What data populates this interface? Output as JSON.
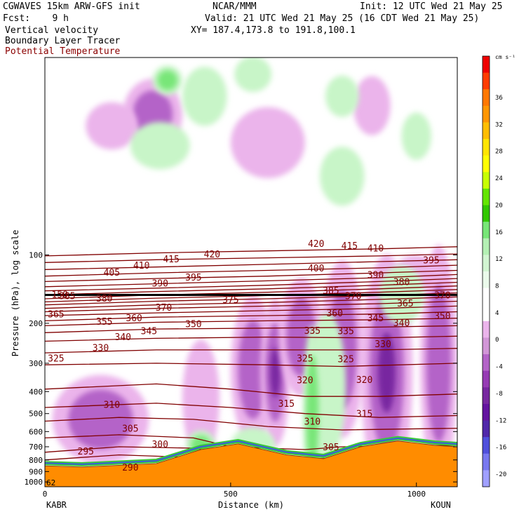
{
  "header": {
    "title": "CGWAVES 15km ARW-GFS init",
    "center": "NCAR/MMM",
    "init": "Init: 12 UTC Wed 21 May 25",
    "fcst": "Fcst:    9 h",
    "valid": "Valid: 21 UTC Wed 21 May 25 (16 CDT Wed 21 May 25)",
    "field1": "Vertical velocity",
    "field2": "Boundary Layer Tracer",
    "field3": "Potential Temperature",
    "xy": "XY= 187.4,173.8 to 191.8,100.1"
  },
  "colors": {
    "theta": "#800000",
    "terrain": "#ff8c00",
    "tropopause": "#000000",
    "up_light": "#c8f5c8",
    "up_mid": "#78e678",
    "down_light": "#ebb4eb",
    "down_mid": "#b464c8",
    "down_dark": "#7828a0"
  },
  "chart_data": {
    "type": "heatmap",
    "xlabel": "Distance (km)",
    "ylabel": "Pressure (hPa), log scale",
    "x_ticks": [
      0,
      500,
      1000
    ],
    "x_range": [
      0,
      1110
    ],
    "y_ticks": [
      100,
      200,
      300,
      400,
      500,
      600,
      700,
      800,
      900,
      1000
    ],
    "y_range": [
      1050,
      13.5
    ],
    "y_scale": "log",
    "endpoint_labels": [
      "KABR",
      "KOUN"
    ],
    "corner_label": "62",
    "colorbar": {
      "unit": "cm s⁻¹",
      "ticks": [
        36,
        32,
        28,
        24,
        20,
        16,
        12,
        8,
        4,
        0,
        -4,
        -8,
        -12,
        -16,
        -20
      ],
      "colors": [
        "#f00000",
        "#ff3c00",
        "#ff7800",
        "#ff9600",
        "#ffbe00",
        "#ffe600",
        "#ffff00",
        "#c8ff00",
        "#64e600",
        "#32c800",
        "#78e678",
        "#b4f0b4",
        "#d2f5d2",
        "#ebfaeb",
        "#ffffff",
        "#ffffff",
        "#ebb4eb",
        "#d296d7",
        "#b464c8",
        "#963cb4",
        "#7828a0",
        "#6414a0",
        "#5028aa",
        "#5050dc",
        "#7878f0",
        "#a0a0ff"
      ]
    },
    "theta_contours": [
      {
        "level": 290,
        "x": [
          0,
          250,
          500,
          750,
          1000,
          1110
        ],
        "p": [
          875,
          860,
          850,
          850,
          860,
          865
        ]
      },
      {
        "level": 295,
        "x": [
          0,
          200,
          400,
          500,
          700,
          1110
        ],
        "p": [
          800,
          760,
          780,
          820,
          840,
          830
        ]
      },
      {
        "level": 300,
        "x": [
          0,
          200,
          400,
          500,
          700,
          1110
        ],
        "p": [
          740,
          700,
          710,
          760,
          790,
          780
        ]
      },
      {
        "level": 305,
        "x": [
          0,
          200,
          400,
          500,
          700,
          800,
          1110
        ],
        "p": [
          640,
          620,
          640,
          700,
          720,
          700,
          690
        ]
      },
      {
        "level": 310,
        "x": [
          0,
          200,
          400,
          600,
          800,
          1110
        ],
        "p": [
          540,
          520,
          530,
          570,
          590,
          580
        ]
      },
      {
        "level": 315,
        "x": [
          0,
          300,
          500,
          700,
          900,
          1110
        ],
        "p": [
          470,
          450,
          470,
          500,
          520,
          510
        ]
      },
      {
        "level": 320,
        "x": [
          0,
          300,
          500,
          700,
          900,
          1110
        ],
        "p": [
          390,
          370,
          390,
          420,
          420,
          410
        ]
      },
      {
        "level": 325,
        "x": [
          0,
          300,
          600,
          800,
          1110
        ],
        "p": [
          305,
          300,
          305,
          310,
          300
        ]
      },
      {
        "level": 330,
        "x": [
          0,
          300,
          600,
          900,
          1110
        ],
        "p": [
          270,
          262,
          262,
          262,
          258
        ]
      },
      {
        "level": 335,
        "x": [
          0,
          300,
          600,
          900,
          1110
        ],
        "p": [
          240,
          233,
          230,
          232,
          228
        ]
      },
      {
        "level": 340,
        "x": [
          0,
          300,
          600,
          900,
          1110
        ],
        "p": [
          220,
          212,
          210,
          208,
          205
        ]
      },
      {
        "level": 345,
        "x": [
          0,
          300,
          600,
          900,
          1110
        ],
        "p": [
          205,
          198,
          195,
          193,
          190
        ]
      },
      {
        "level": 350,
        "x": [
          0,
          300,
          600,
          900,
          1110
        ],
        "p": [
          195,
          188,
          185,
          182,
          178
        ]
      },
      {
        "level": 355,
        "x": [
          0,
          300,
          600,
          900,
          1110
        ],
        "p": [
          185,
          180,
          176,
          172,
          168
        ]
      },
      {
        "level": 360,
        "x": [
          0,
          300,
          600,
          900,
          1110
        ],
        "p": [
          178,
          172,
          168,
          164,
          160
        ]
      },
      {
        "level": 365,
        "x": [
          0,
          300,
          600,
          900,
          1110
        ],
        "p": [
          172,
          166,
          162,
          157,
          153
        ]
      },
      {
        "level": 370,
        "x": [
          0,
          300,
          600,
          900,
          1110
        ],
        "p": [
          166,
          160,
          156,
          151,
          147
        ]
      },
      {
        "level": 375,
        "x": [
          0,
          300,
          600,
          900,
          1110
        ],
        "p": [
          161,
          155,
          151,
          146,
          142
        ]
      },
      {
        "level": 380,
        "x": [
          0,
          300,
          600,
          900,
          1110
        ],
        "p": [
          156,
          150,
          146,
          141,
          137
        ]
      },
      {
        "level": 385,
        "x": [
          0,
          300,
          600,
          900,
          1110
        ],
        "p": [
          150,
          145,
          141,
          136,
          132
        ]
      },
      {
        "level": 390,
        "x": [
          0,
          300,
          600,
          900,
          1110
        ],
        "p": [
          144,
          140,
          136,
          131,
          127
        ]
      },
      {
        "level": 395,
        "x": [
          0,
          300,
          600,
          900,
          1110
        ],
        "p": [
          138,
          134,
          130,
          126,
          122
        ]
      },
      {
        "level": 400,
        "x": [
          0,
          300,
          600,
          900,
          1110
        ],
        "p": [
          131,
          127,
          124,
          120,
          117
        ]
      },
      {
        "level": 405,
        "x": [
          0,
          300,
          600,
          900,
          1110
        ],
        "p": [
          124,
          120,
          117,
          114,
          111
        ]
      },
      {
        "level": 410,
        "x": [
          0,
          300,
          600,
          900,
          1110
        ],
        "p": [
          116,
          113,
          110,
          107,
          105
        ]
      },
      {
        "level": 415,
        "x": [
          0,
          300,
          600,
          900,
          1110
        ],
        "p": [
          108,
          105,
          103,
          101,
          99
        ]
      },
      {
        "level": 420,
        "x": [
          0,
          300,
          600,
          900,
          1110
        ],
        "p": [
          101,
          98,
          96,
          94,
          92
        ]
      }
    ],
    "theta_labels": [
      {
        "text": "420",
        "x": 450,
        "p": 99
      },
      {
        "text": "415",
        "x": 340,
        "p": 104
      },
      {
        "text": "410",
        "x": 260,
        "p": 111
      },
      {
        "text": "405",
        "x": 180,
        "p": 119
      },
      {
        "text": "400",
        "x": 730,
        "p": 114
      },
      {
        "text": "395",
        "x": 400,
        "p": 125
      },
      {
        "text": "390",
        "x": 310,
        "p": 133
      },
      {
        "text": "385",
        "x": 60,
        "p": 151
      },
      {
        "text": "380",
        "x": 160,
        "p": 155
      },
      {
        "text": "375",
        "x": 500,
        "p": 157
      },
      {
        "text": "370",
        "x": 320,
        "p": 170
      },
      {
        "text": "365",
        "x": 30,
        "p": 182
      },
      {
        "text": "360",
        "x": 240,
        "p": 189
      },
      {
        "text": "355",
        "x": 160,
        "p": 196
      },
      {
        "text": "350",
        "x": 400,
        "p": 201
      },
      {
        "text": "345",
        "x": 280,
        "p": 216
      },
      {
        "text": "340",
        "x": 210,
        "p": 229
      },
      {
        "text": "335",
        "x": 720,
        "p": 215
      },
      {
        "text": "330",
        "x": 150,
        "p": 256
      },
      {
        "text": "325",
        "x": 30,
        "p": 285
      },
      {
        "text": "325",
        "x": 700,
        "p": 285
      },
      {
        "text": "320",
        "x": 700,
        "p": 355
      },
      {
        "text": "315",
        "x": 650,
        "p": 450
      },
      {
        "text": "310",
        "x": 180,
        "p": 455
      },
      {
        "text": "310",
        "x": 720,
        "p": 540
      },
      {
        "text": "305",
        "x": 230,
        "p": 580
      },
      {
        "text": "305",
        "x": 770,
        "p": 700
      },
      {
        "text": "300",
        "x": 310,
        "p": 680
      },
      {
        "text": "295",
        "x": 110,
        "p": 730
      },
      {
        "text": "290",
        "x": 230,
        "p": 860
      },
      {
        "text": "420",
        "x": 730,
        "p": 89
      },
      {
        "text": "415",
        "x": 820,
        "p": 91
      },
      {
        "text": "410",
        "x": 890,
        "p": 93
      },
      {
        "text": "395",
        "x": 1040,
        "p": 105
      },
      {
        "text": "390",
        "x": 890,
        "p": 122
      },
      {
        "text": "385",
        "x": 770,
        "p": 143
      },
      {
        "text": "380",
        "x": 960,
        "p": 131
      },
      {
        "text": "370",
        "x": 1070,
        "p": 150
      },
      {
        "text": "365",
        "x": 970,
        "p": 163
      },
      {
        "text": "360",
        "x": 780,
        "p": 180
      },
      {
        "text": "350",
        "x": 1070,
        "p": 185
      },
      {
        "text": "345",
        "x": 890,
        "p": 189
      },
      {
        "text": "340",
        "x": 960,
        "p": 199
      },
      {
        "text": "335",
        "x": 810,
        "p": 216
      },
      {
        "text": "330",
        "x": 910,
        "p": 246
      },
      {
        "text": "325",
        "x": 810,
        "p": 287
      },
      {
        "text": "320",
        "x": 860,
        "p": 353
      },
      {
        "text": "315",
        "x": 860,
        "p": 500
      },
      {
        "text": "150",
        "x": 40,
        "p": 149
      },
      {
        "text": "370",
        "x": 830,
        "p": 151
      }
    ],
    "tropopause_p": 150,
    "surface": {
      "x": [
        0,
        100,
        200,
        300,
        420,
        520,
        650,
        750,
        850,
        950,
        1050,
        1110
      ],
      "p": [
        850,
        860,
        845,
        830,
        720,
        680,
        760,
        790,
        700,
        660,
        690,
        700
      ]
    },
    "updrafts": [
      {
        "x": 430,
        "p": 20,
        "rx": 60,
        "rp": 0.1,
        "level": 1
      },
      {
        "x": 330,
        "p": 17,
        "rx": 40,
        "rp": 0.05,
        "level": 2
      },
      {
        "x": 560,
        "p": 16,
        "rx": 50,
        "rp": 0.06,
        "level": 1
      },
      {
        "x": 800,
        "p": 20,
        "rx": 45,
        "rp": 0.07,
        "level": 1
      },
      {
        "x": 310,
        "p": 33,
        "rx": 80,
        "rp": 0.08,
        "level": 1
      },
      {
        "x": 800,
        "p": 45,
        "rx": 60,
        "rp": 0.1,
        "level": 1
      },
      {
        "x": 1000,
        "p": 30,
        "rx": 40,
        "rp": 0.08,
        "level": 1
      },
      {
        "x": 760,
        "p": 380,
        "rx": 50,
        "rp": 0.25,
        "level": 1
      },
      {
        "x": 720,
        "p": 500,
        "rx": 25,
        "rp": 0.3,
        "level": 2
      },
      {
        "x": 960,
        "p": 150,
        "rx": 60,
        "rp": 0.1,
        "level": 1
      },
      {
        "x": 560,
        "p": 690,
        "rx": 60,
        "rp": 0.06,
        "level": 1
      },
      {
        "x": 420,
        "p": 690,
        "rx": 40,
        "rp": 0.05,
        "level": 2
      }
    ],
    "downdrafts": [
      {
        "x": 290,
        "p": 24,
        "rx": 80,
        "rp": 0.12,
        "level": 2
      },
      {
        "x": 180,
        "p": 27,
        "rx": 70,
        "rp": 0.08,
        "level": 1
      },
      {
        "x": 600,
        "p": 32,
        "rx": 100,
        "rp": 0.12,
        "level": 1
      },
      {
        "x": 880,
        "p": 22,
        "rx": 50,
        "rp": 0.1,
        "level": 1
      },
      {
        "x": 560,
        "p": 320,
        "rx": 60,
        "rp": 0.25,
        "level": 2
      },
      {
        "x": 620,
        "p": 330,
        "rx": 40,
        "rp": 0.25,
        "level": 3
      },
      {
        "x": 690,
        "p": 230,
        "rx": 60,
        "rp": 0.2,
        "level": 2
      },
      {
        "x": 800,
        "p": 260,
        "rx": 60,
        "rp": 0.3,
        "level": 2
      },
      {
        "x": 920,
        "p": 330,
        "rx": 70,
        "rp": 0.4,
        "level": 3
      },
      {
        "x": 1060,
        "p": 300,
        "rx": 50,
        "rp": 0.4,
        "level": 2
      },
      {
        "x": 150,
        "p": 530,
        "rx": 130,
        "rp": 0.15,
        "level": 2
      },
      {
        "x": 420,
        "p": 430,
        "rx": 50,
        "rp": 0.2,
        "level": 1
      },
      {
        "x": 1000,
        "p": 120,
        "rx": 60,
        "rp": 0.06,
        "level": 1
      }
    ]
  }
}
